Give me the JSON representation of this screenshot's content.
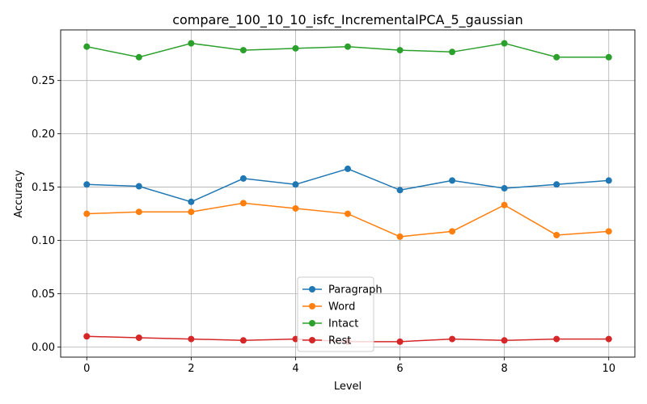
{
  "chart_data": {
    "type": "line",
    "title": "compare_100_10_10_isfc_IncrementalPCA_5_gaussian",
    "xlabel": "Level",
    "ylabel": "Accuracy",
    "x": [
      0,
      1,
      2,
      3,
      4,
      5,
      6,
      7,
      8,
      9,
      10
    ],
    "xlim": [
      -0.5,
      10.5
    ],
    "ylim": [
      -0.0095,
      0.2975
    ],
    "xticks": [
      0,
      2,
      4,
      6,
      8,
      10
    ],
    "xtick_labels": [
      "0",
      "2",
      "4",
      "6",
      "8",
      "10"
    ],
    "yticks": [
      0.0,
      0.05,
      0.1,
      0.15,
      0.2,
      0.25
    ],
    "ytick_labels": [
      "0.00",
      "0.05",
      "0.10",
      "0.15",
      "0.20",
      "0.25"
    ],
    "grid": true,
    "legend_position": "lower-center",
    "series": [
      {
        "name": "Paragraph",
        "color": "#1f77b4",
        "values": [
          0.1525,
          0.1508,
          0.1362,
          0.1581,
          0.1525,
          0.1672,
          0.1472,
          0.1562,
          0.1489,
          0.1525,
          0.1562
        ]
      },
      {
        "name": "Word",
        "color": "#ff7f0e",
        "values": [
          0.125,
          0.1268,
          0.1268,
          0.135,
          0.13,
          0.125,
          0.1035,
          0.1085,
          0.1332,
          0.105,
          0.1085
        ]
      },
      {
        "name": "Intact",
        "color": "#2ca02c",
        "values": [
          0.2818,
          0.2719,
          0.2849,
          0.2785,
          0.2802,
          0.2818,
          0.2785,
          0.2768,
          0.2849,
          0.2719,
          0.2719
        ]
      },
      {
        "name": "Rest",
        "color": "#d62728",
        "values": [
          0.01,
          0.0087,
          0.0075,
          0.0062,
          0.0075,
          0.005,
          0.005,
          0.0075,
          0.0062,
          0.0075,
          0.0075
        ]
      }
    ]
  }
}
